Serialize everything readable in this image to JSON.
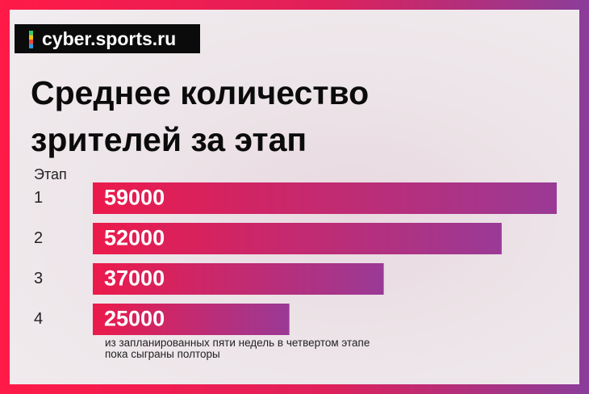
{
  "logo": "cyber.sports.ru",
  "chart_data": {
    "type": "hbar",
    "title": "Среднее количество зрителей за этап",
    "y_label": "Этап",
    "categories": [
      "1",
      "2",
      "3",
      "4"
    ],
    "values": [
      59000,
      52000,
      37000,
      25000
    ],
    "color": "#ec1a4b",
    "xlim": [
      0,
      59000
    ],
    "annotation": "из запланированных пяти недель в четвертом этапе пока сыграны полторы"
  }
}
